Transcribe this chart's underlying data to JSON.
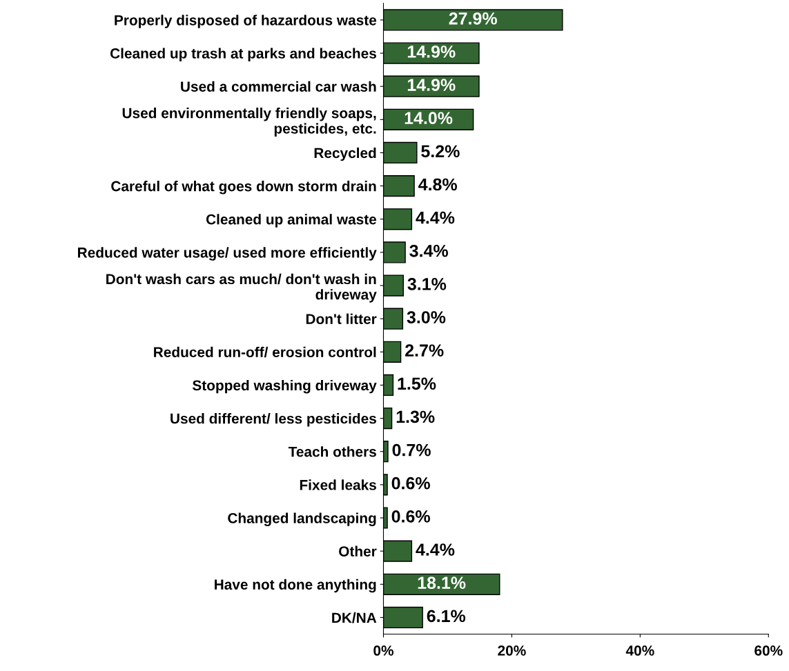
{
  "chart_data": {
    "type": "bar",
    "orientation": "horizontal",
    "categories": [
      "Properly disposed of hazardous waste",
      "Cleaned up trash at parks and beaches",
      "Used a commercial car wash",
      "Used environmentally friendly soaps, pesticides, etc.",
      "Recycled",
      "Careful of what goes down storm drain",
      "Cleaned up animal waste",
      "Reduced water usage/ used more efficiently",
      "Don't wash cars as much/ don't wash in driveway",
      "Don't litter",
      "Reduced run-off/ erosion control",
      "Stopped washing driveway",
      "Used different/ less pesticides",
      "Teach others",
      "Fixed leaks",
      "Changed landscaping",
      "Other",
      "Have not done anything",
      "DK/NA"
    ],
    "values": [
      27.9,
      14.9,
      14.9,
      14.0,
      5.2,
      4.8,
      4.4,
      3.4,
      3.1,
      3.0,
      2.7,
      1.5,
      1.3,
      0.7,
      0.6,
      0.6,
      4.4,
      18.1,
      6.1
    ],
    "value_labels": [
      "27.9%",
      "14.9%",
      "14.9%",
      "14.0%",
      "5.2%",
      "4.8%",
      "4.4%",
      "3.4%",
      "3.1%",
      "3.0%",
      "2.7%",
      "1.5%",
      "1.3%",
      "0.7%",
      "0.6%",
      "0.6%",
      "4.4%",
      "18.1%",
      "6.1%"
    ],
    "color": "#336633",
    "xlim": [
      0,
      60
    ],
    "xticks": [
      {
        "value": 0,
        "label": "0%"
      },
      {
        "value": 20,
        "label": "20%"
      },
      {
        "value": 40,
        "label": "40%"
      },
      {
        "value": 60,
        "label": "60%"
      }
    ],
    "grid": false,
    "legend": false
  }
}
